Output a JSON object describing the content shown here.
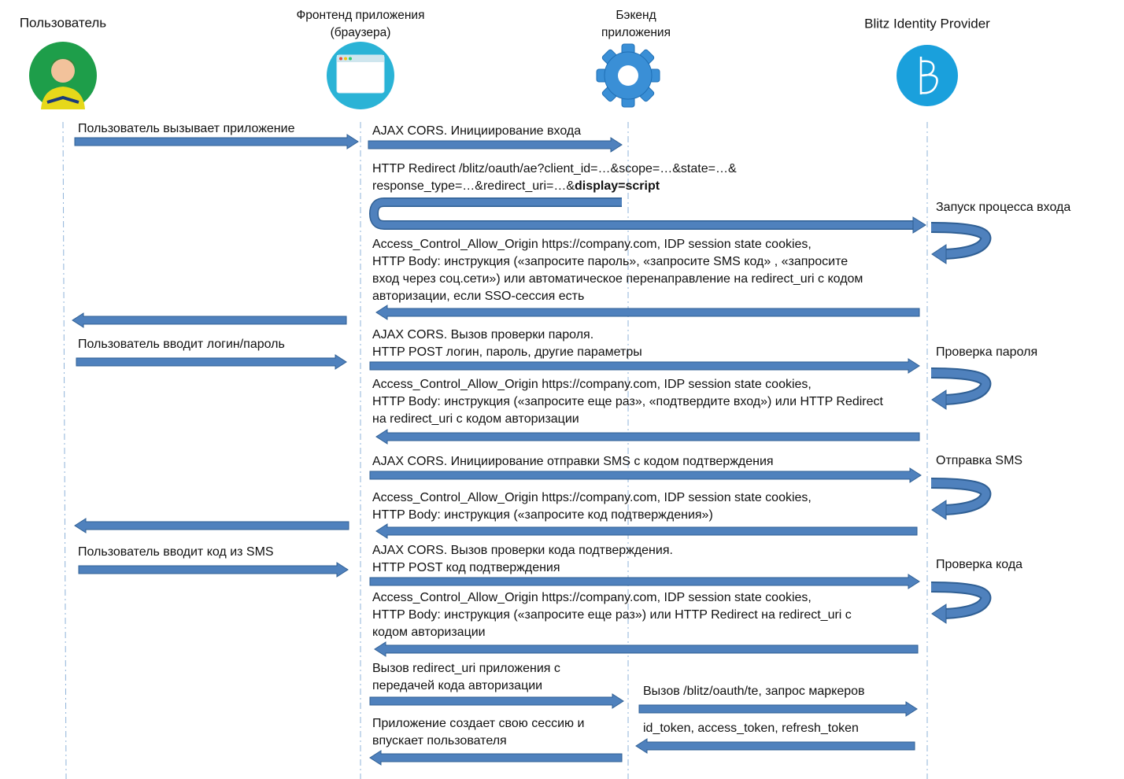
{
  "participants": [
    {
      "lines": [
        "Пользователь"
      ]
    },
    {
      "lines": [
        "Фронтенд приложения",
        "(браузера)"
      ]
    },
    {
      "lines": [
        "Бэкенд",
        "приложения"
      ]
    },
    {
      "lines": [
        "Blitz Identity Provider"
      ]
    }
  ],
  "messages": [
    {
      "lines": [
        "Пользователь вызывает приложение"
      ]
    },
    {
      "lines": [
        "AJAX CORS. Инициирование входа"
      ]
    },
    {
      "lines": [
        "HTTP Redirect /blitz/oauth/ae?client_id=…&scope=…&state=…&",
        "response_type=…&redirect_uri=…&"
      ],
      "emphasis": "display=script"
    },
    {
      "lines": [
        "Access_Control_Allow_Origin https://company.com, IDP session state cookies,",
        "HTTP Body: инструкция («запросите пароль», «запросите SMS код» , «запросите",
        "вход через соц.сети») или автоматическое перенаправление на redirect_uri с кодом",
        "авторизации, если SSO-сессия есть"
      ]
    },
    {
      "lines": [
        "Пользователь вводит логин/пароль"
      ]
    },
    {
      "lines": [
        "AJAX CORS. Вызов проверки пароля.",
        "HTTP POST логин, пароль, другие параметры"
      ]
    },
    {
      "lines": [
        "Access_Control_Allow_Origin https://company.com, IDP session state cookies,",
        "HTTP Body: инструкция («запросите еще раз», «подтвердите вход») или HTTP Redirect",
        "на redirect_uri с кодом авторизации"
      ]
    },
    {
      "lines": [
        "AJAX CORS. Инициирование отправки SMS с кодом подтверждения"
      ]
    },
    {
      "lines": [
        "Access_Control_Allow_Origin https://company.com, IDP session state cookies,",
        "HTTP Body: инструкция («запросите код подтверждения»)"
      ]
    },
    {
      "lines": [
        "Пользователь вводит код из SMS"
      ]
    },
    {
      "lines": [
        "AJAX CORS. Вызов проверки кода подтверждения.",
        "HTTP POST код подтверждения"
      ]
    },
    {
      "lines": [
        "Access_Control_Allow_Origin https://company.com, IDP session state cookies,",
        "HTTP Body: инструкция («запросите еще раз») или HTTP Redirect на redirect_uri с",
        "кодом авторизации"
      ]
    },
    {
      "lines": [
        "Вызов redirect_uri приложения с",
        "передачей кода авторизации"
      ]
    },
    {
      "lines": [
        "Вызов /blitz/oauth/te, запрос маркеров"
      ]
    },
    {
      "lines": [
        "id_token, access_token, refresh_token"
      ]
    },
    {
      "lines": [
        "Приложение создает свою сессию и",
        "впускает пользователя"
      ]
    }
  ],
  "self_actions": [
    {
      "label": "Запуск процесса входа"
    },
    {
      "label": "Проверка пароля"
    },
    {
      "label": "Отправка SMS"
    },
    {
      "label": "Проверка кода"
    }
  ]
}
